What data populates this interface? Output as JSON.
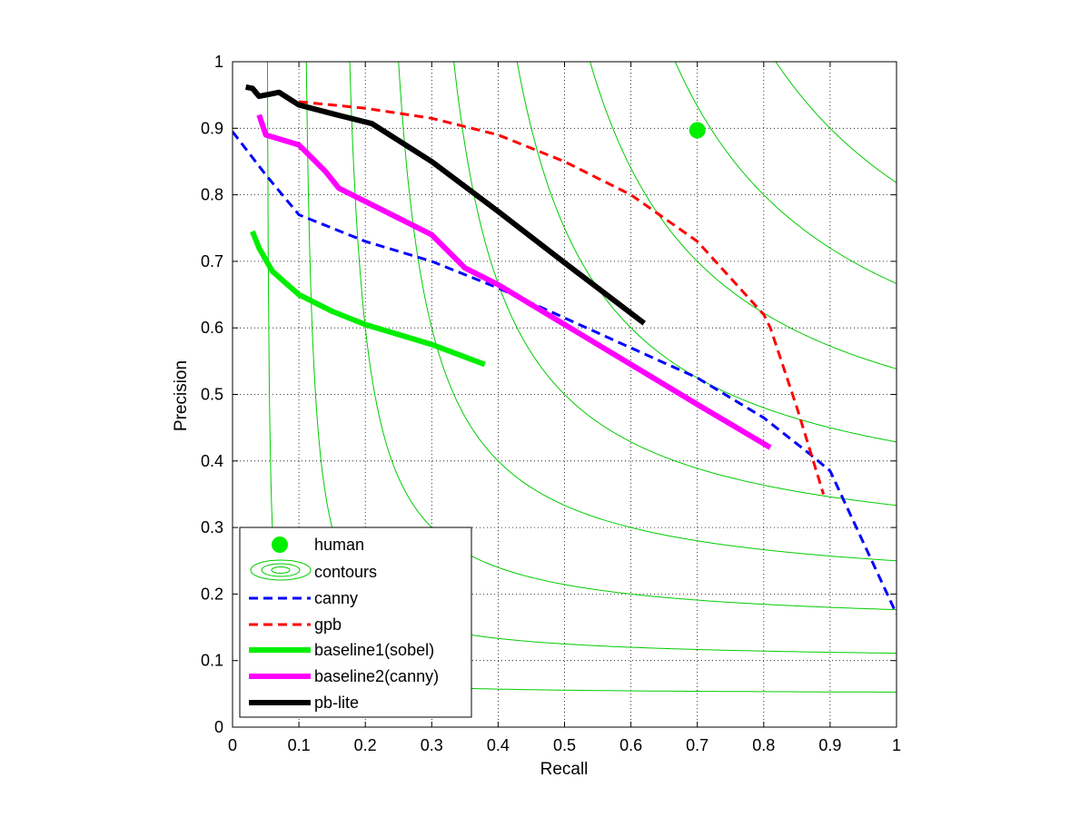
{
  "chart_data": {
    "type": "line",
    "title": "",
    "xlabel": "Recall",
    "ylabel": "Precision",
    "xlim": [
      0,
      1
    ],
    "ylim": [
      0,
      1
    ],
    "grid": true,
    "legend_position": "bottom-left",
    "xticks": [
      "0",
      "0.1",
      "0.2",
      "0.3",
      "0.4",
      "0.5",
      "0.6",
      "0.7",
      "0.8",
      "0.9",
      "1"
    ],
    "yticks": [
      "0",
      "0.1",
      "0.2",
      "0.3",
      "0.4",
      "0.5",
      "0.6",
      "0.7",
      "0.8",
      "0.9",
      "1"
    ],
    "contours": {
      "name": "contours",
      "type": "iso-F",
      "color": "#00cc00",
      "levels": [
        0.1,
        0.2,
        0.3,
        0.4,
        0.5,
        0.6,
        0.7,
        0.8,
        0.9
      ]
    },
    "points": [
      {
        "name": "human",
        "x": 0.7,
        "y": 0.897,
        "color": "#00ee00"
      }
    ],
    "series": [
      {
        "name": "canny",
        "color": "#0000ff",
        "style": "dashed",
        "x": [
          0.0,
          0.05,
          0.1,
          0.2,
          0.3,
          0.4,
          0.5,
          0.6,
          0.7,
          0.8,
          0.87,
          0.9,
          1.0
        ],
        "y": [
          0.895,
          0.83,
          0.77,
          0.73,
          0.7,
          0.66,
          0.615,
          0.57,
          0.525,
          0.465,
          0.41,
          0.385,
          0.17
        ]
      },
      {
        "name": "gpb",
        "color": "#ff0000",
        "style": "dashed",
        "x": [
          0.1,
          0.2,
          0.3,
          0.4,
          0.5,
          0.6,
          0.7,
          0.8,
          0.81,
          0.85,
          0.89
        ],
        "y": [
          0.94,
          0.93,
          0.915,
          0.89,
          0.85,
          0.8,
          0.73,
          0.62,
          0.6,
          0.48,
          0.35
        ]
      },
      {
        "name": "baseline1(sobel)",
        "color": "#00ee00",
        "style": "solid",
        "x": [
          0.03,
          0.04,
          0.06,
          0.1,
          0.15,
          0.2,
          0.3,
          0.38
        ],
        "y": [
          0.745,
          0.72,
          0.685,
          0.65,
          0.625,
          0.605,
          0.575,
          0.545
        ]
      },
      {
        "name": "baseline2(canny)",
        "color": "#ff00ff",
        "style": "solid",
        "x": [
          0.04,
          0.05,
          0.1,
          0.14,
          0.16,
          0.2,
          0.3,
          0.35,
          0.4,
          0.5,
          0.6,
          0.7,
          0.81
        ],
        "y": [
          0.92,
          0.89,
          0.875,
          0.835,
          0.81,
          0.79,
          0.74,
          0.69,
          0.665,
          0.605,
          0.545,
          0.485,
          0.42
        ]
      },
      {
        "name": "pb-lite",
        "color": "#000000",
        "style": "solid",
        "x": [
          0.02,
          0.03,
          0.04,
          0.06,
          0.07,
          0.1,
          0.15,
          0.21,
          0.3,
          0.4,
          0.5,
          0.62
        ],
        "y": [
          0.962,
          0.96,
          0.948,
          0.952,
          0.954,
          0.935,
          0.922,
          0.907,
          0.85,
          0.775,
          0.698,
          0.607
        ]
      }
    ]
  },
  "legend": {
    "human": "human",
    "contours": "contours",
    "canny": "canny",
    "gpb": "gpb",
    "baseline1": "baseline1(sobel)",
    "baseline2": "baseline2(canny)",
    "pblite": "pb-lite"
  }
}
